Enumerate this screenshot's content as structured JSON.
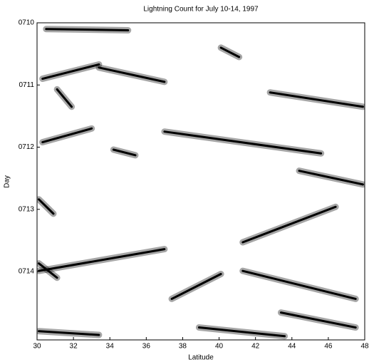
{
  "chart_data": {
    "type": "density",
    "title": "Lightning Count for July 10-14, 1997",
    "x_label": "Latitude",
    "y_label": "Day",
    "color": "#000000",
    "xlim": [
      30,
      48
    ],
    "xticks": [
      30,
      32,
      34,
      36,
      38,
      40,
      42,
      44,
      46,
      48
    ],
    "ylim": [
      710,
      715.1
    ],
    "y_inverted": true,
    "yticks": [
      {
        "value": 710,
        "label": "0710"
      },
      {
        "value": 711,
        "label": "0711"
      },
      {
        "value": 712,
        "label": "0712"
      },
      {
        "value": 713,
        "label": "0713"
      },
      {
        "value": 714,
        "label": "0714"
      }
    ],
    "streaks": [
      {
        "x": [
          30.5,
          35
        ],
        "y": [
          710.1,
          710.12
        ]
      },
      {
        "x": [
          40.1,
          41.1
        ],
        "y": [
          710.4,
          710.55
        ]
      },
      {
        "x": [
          30.3,
          33.4
        ],
        "y": [
          710.9,
          710.67
        ]
      },
      {
        "x": [
          33.4,
          37
        ],
        "y": [
          710.72,
          710.95
        ]
      },
      {
        "x": [
          31.1,
          31.9
        ],
        "y": [
          711.07,
          711.35
        ]
      },
      {
        "x": [
          42.8,
          47.9
        ],
        "y": [
          711.12,
          711.35
        ]
      },
      {
        "x": [
          30.3,
          33
        ],
        "y": [
          711.92,
          711.7
        ]
      },
      {
        "x": [
          37,
          45.6
        ],
        "y": [
          711.75,
          712.1
        ]
      },
      {
        "x": [
          34.2,
          35.4
        ],
        "y": [
          712.04,
          712.13
        ]
      },
      {
        "x": [
          44.4,
          47.9
        ],
        "y": [
          712.38,
          712.6
        ]
      },
      {
        "x": [
          30.1,
          30.9
        ],
        "y": [
          712.84,
          713.07
        ]
      },
      {
        "x": [
          46.4,
          41.3
        ],
        "y": [
          712.96,
          713.53
        ]
      },
      {
        "x": [
          30.1,
          37
        ],
        "y": [
          713.99,
          713.64
        ]
      },
      {
        "x": [
          30.1,
          31.1
        ],
        "y": [
          713.87,
          714.1
        ]
      },
      {
        "x": [
          37.4,
          40.1
        ],
        "y": [
          714.44,
          714.04
        ]
      },
      {
        "x": [
          41.3,
          47.5
        ],
        "y": [
          713.99,
          714.44
        ]
      },
      {
        "x": [
          30.1,
          33.4
        ],
        "y": [
          714.96,
          715.02
        ]
      },
      {
        "x": [
          38.9,
          43.6
        ],
        "y": [
          714.9,
          715.04
        ]
      },
      {
        "x": [
          43.4,
          47.5
        ],
        "y": [
          714.66,
          714.9
        ]
      }
    ]
  }
}
